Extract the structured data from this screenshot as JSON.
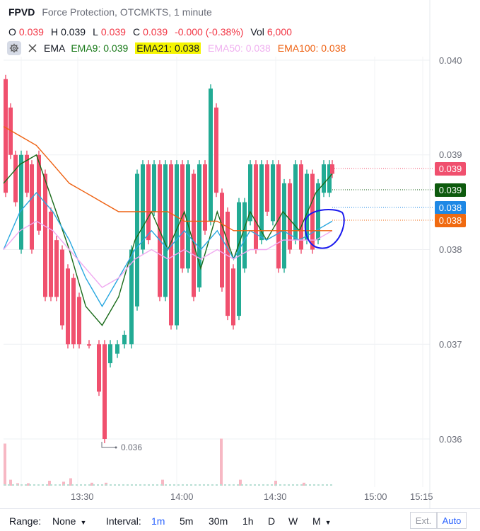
{
  "header": {
    "symbol": "FPVD",
    "description": "Force Protection, OTCMKTS, 1 minute",
    "ohlc": {
      "o_label": "O",
      "o_value": "0.039",
      "h_label": "H",
      "h_value": "0.039",
      "l_label": "L",
      "l_value": "0.039",
      "c_label": "C",
      "c_value": "0.039",
      "change": "-0.000 (-0.38%)",
      "vol_label": "Vol",
      "vol_value": "6,000"
    },
    "study": {
      "name": "EMA",
      "ema9": "EMA9: 0.039",
      "ema21": "EMA21: 0.038",
      "ema50": "EMA50: 0.038",
      "ema100": "EMA100: 0.038"
    }
  },
  "price_axis": [
    "0.040",
    "0.039",
    "0.038",
    "0.037",
    "0.036"
  ],
  "price_tags": [
    {
      "text": "0.039",
      "color": "#f0506e"
    },
    {
      "text": "0.039",
      "color": "#0d5a0d"
    },
    {
      "text": "0.038",
      "color": "#1e88e5"
    },
    {
      "text": "0.038",
      "color": "#f06a10"
    }
  ],
  "low_marker": "0.036",
  "time_axis": [
    "13:30",
    "14:00",
    "14:30",
    "15:00",
    "15:15"
  ],
  "toolbar": {
    "range_label": "Range:",
    "range_value": "None",
    "interval_label": "Interval:",
    "intervals": [
      "1m",
      "5m",
      "30m",
      "1h",
      "D",
      "W",
      "M"
    ],
    "active_interval": "1m",
    "ext_label": "Ext.",
    "auto_label": "Auto"
  },
  "colors": {
    "up": "#22ab94",
    "down": "#f0506e",
    "ema9": "#1a6b1a",
    "ema21": "#29a8e0",
    "ema50": "#f0a8f0",
    "ema100": "#ee6010",
    "annotation": "#1a1aee"
  },
  "chart_data": {
    "type": "line",
    "title": "",
    "ylim": [
      0.0358,
      0.0402
    ],
    "x_ticks": [
      "13:30",
      "14:00",
      "14:30",
      "15:00",
      "15:15"
    ],
    "y_ticks": [
      0.04,
      0.039,
      0.038,
      0.037,
      0.036
    ],
    "series": [
      {
        "name": "EMA9",
        "values": [
          0.0387,
          0.0389,
          0.039,
          0.0385,
          0.038,
          0.0374,
          0.0372,
          0.0375,
          0.0381,
          0.0384,
          0.038,
          0.0384,
          0.0378,
          0.0384,
          0.0379,
          0.0384,
          0.0381,
          0.0384,
          0.0382,
          0.0386,
          0.0388
        ]
      },
      {
        "name": "EMA21",
        "values": [
          0.038,
          0.0384,
          0.0386,
          0.0384,
          0.0381,
          0.0377,
          0.0374,
          0.0377,
          0.038,
          0.0382,
          0.038,
          0.0382,
          0.038,
          0.0382,
          0.0379,
          0.0382,
          0.0381,
          0.0382,
          0.0381,
          0.0382,
          0.0383
        ]
      },
      {
        "name": "EMA50",
        "values": [
          0.038,
          0.0382,
          0.0383,
          0.0382,
          0.038,
          0.0378,
          0.0376,
          0.0377,
          0.0379,
          0.038,
          0.0379,
          0.038,
          0.0379,
          0.038,
          0.0379,
          0.038,
          0.038,
          0.0381,
          0.0381,
          0.0381,
          0.0382
        ]
      },
      {
        "name": "EMA100",
        "values": [
          0.0393,
          0.0392,
          0.0391,
          0.0389,
          0.0387,
          0.0386,
          0.0385,
          0.0384,
          0.0384,
          0.0384,
          0.0384,
          0.0383,
          0.0383,
          0.0383,
          0.0382,
          0.0382,
          0.0382,
          0.0382,
          0.0382,
          0.0382,
          0.0382
        ]
      }
    ],
    "grid": true
  }
}
